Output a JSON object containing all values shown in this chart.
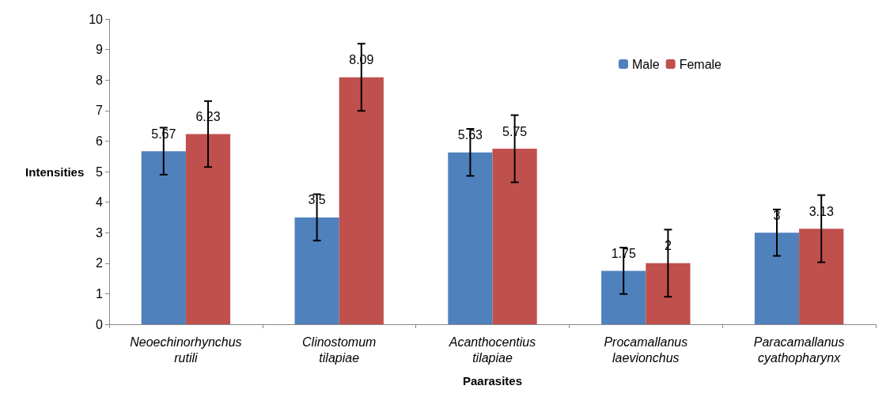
{
  "chart_data": {
    "type": "bar",
    "xlabel": "Paarasites",
    "ylabel": "Intensities",
    "categories": [
      "Neoechinorhynchus\nrutili",
      "Clinostomum\ntilapiae",
      "Acanthocentius\ntilapiae",
      "Procamallanus\nlaevionchus",
      "Paracamallanus\ncyathopharynx"
    ],
    "series": [
      {
        "name": "Male",
        "color": "#4f81bd",
        "values": [
          5.67,
          3.5,
          5.63,
          1.75,
          3
        ],
        "errors": [
          0.77,
          0.76,
          0.77,
          0.76,
          0.76
        ]
      },
      {
        "name": "Female",
        "color": "#c0504d",
        "values": [
          6.23,
          8.09,
          5.75,
          2,
          3.13
        ],
        "errors": [
          1.08,
          1.1,
          1.1,
          1.1,
          1.1
        ]
      }
    ],
    "ylim": [
      0,
      10
    ],
    "yticks": [
      0,
      1,
      2,
      3,
      4,
      5,
      6,
      7,
      8,
      9,
      10
    ],
    "grid": false,
    "legend": "top right",
    "data_labels": true
  }
}
